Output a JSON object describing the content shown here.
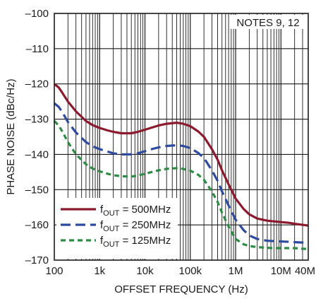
{
  "chart_data": {
    "type": "line",
    "xlabel": "OFFSET FREQUENCY (Hz)",
    "ylabel": "PHASE NOISE (dBc/Hz)",
    "x_scale": "log",
    "xlim": [
      100,
      40000000
    ],
    "ylim": [
      -170,
      -100
    ],
    "grid": true,
    "annotation": "NOTES 9, 12",
    "legend_position": "bottom-left",
    "x_ticks": [
      {
        "value": 100,
        "label": "100"
      },
      {
        "value": 1000,
        "label": "1k"
      },
      {
        "value": 10000,
        "label": "10k"
      },
      {
        "value": 100000,
        "label": "100k"
      },
      {
        "value": 1000000,
        "label": "1M"
      },
      {
        "value": 10000000,
        "label": "10M"
      },
      {
        "value": 40000000,
        "label": "40M"
      }
    ],
    "y_ticks": [
      {
        "value": -100,
        "label": "–100"
      },
      {
        "value": -110,
        "label": "–110"
      },
      {
        "value": -120,
        "label": "–120"
      },
      {
        "value": -130,
        "label": "–130"
      },
      {
        "value": -140,
        "label": "–140"
      },
      {
        "value": -150,
        "label": "–150"
      },
      {
        "value": -160,
        "label": "–160"
      },
      {
        "value": -170,
        "label": "–170"
      }
    ],
    "series": [
      {
        "name": "fOUT = 500MHz",
        "legend": {
          "pre": "f",
          "sub": "OUT",
          "post": " = 500MHz"
        },
        "color": "#8b1a2e",
        "dash": "solid",
        "x": [
          100,
          125,
          150,
          200,
          300,
          500,
          700,
          1000,
          1500,
          2000,
          3000,
          5000,
          7000,
          10000,
          15000,
          20000,
          30000,
          50000,
          70000,
          100000,
          150000,
          200000,
          300000,
          400000,
          500000,
          700000,
          1000000,
          1500000,
          2000000,
          3000000,
          5000000,
          7000000,
          10000000,
          15000000,
          20000000,
          30000000,
          40000000
        ],
        "y": [
          -120,
          -121,
          -122.5,
          -125,
          -127.8,
          -130.5,
          -131.7,
          -132.5,
          -133.2,
          -133.6,
          -134,
          -134,
          -133.6,
          -133,
          -132.3,
          -131.8,
          -131.3,
          -131,
          -131.3,
          -132,
          -133.5,
          -135,
          -138.5,
          -141.5,
          -144.5,
          -148.5,
          -152.5,
          -155.5,
          -157,
          -158.2,
          -158.8,
          -159,
          -159.2,
          -159.4,
          -159.7,
          -160,
          -160.2
        ]
      },
      {
        "name": "fOUT = 250MHz",
        "legend": {
          "pre": "f",
          "sub": "OUT",
          "post": " = 250MHz"
        },
        "color": "#2e4a9e",
        "dash": "long-dash",
        "x": [
          100,
          125,
          150,
          200,
          300,
          500,
          700,
          1000,
          1500,
          2000,
          3000,
          5000,
          7000,
          10000,
          15000,
          20000,
          30000,
          50000,
          70000,
          100000,
          150000,
          200000,
          300000,
          400000,
          500000,
          700000,
          1000000,
          1500000,
          2000000,
          3000000,
          5000000,
          7000000,
          10000000,
          15000000,
          20000000,
          30000000,
          40000000
        ],
        "y": [
          -125.5,
          -126.5,
          -128,
          -130.8,
          -133.8,
          -136.5,
          -137.7,
          -138.5,
          -139.2,
          -139.7,
          -140,
          -140,
          -139.7,
          -139.1,
          -138.4,
          -138,
          -137.6,
          -137.4,
          -137.6,
          -138.2,
          -139.6,
          -141,
          -144.5,
          -147.5,
          -150.5,
          -154.5,
          -158.5,
          -161.5,
          -163,
          -164,
          -164.5,
          -164.6,
          -164.7,
          -164.8,
          -164.9,
          -165,
          -165
        ]
      },
      {
        "name": "fOUT = 125MHz",
        "legend": {
          "pre": "f",
          "sub": "OUT",
          "post": " = 125MHz"
        },
        "color": "#2e8b45",
        "dash": "short-dash",
        "x": [
          100,
          125,
          150,
          200,
          300,
          500,
          700,
          1000,
          1500,
          2000,
          3000,
          5000,
          7000,
          10000,
          15000,
          20000,
          30000,
          50000,
          70000,
          100000,
          150000,
          200000,
          300000,
          400000,
          500000,
          700000,
          1000000,
          1500000,
          2000000,
          3000000,
          5000000,
          7000000,
          10000000,
          15000000,
          20000000,
          30000000,
          40000000
        ],
        "y": [
          -130.5,
          -131.8,
          -133.5,
          -136.5,
          -140,
          -142.8,
          -144,
          -144.8,
          -145.5,
          -145.9,
          -146.2,
          -146.3,
          -146,
          -145.5,
          -144.9,
          -144.5,
          -144.1,
          -143.9,
          -144.1,
          -144.6,
          -145.8,
          -147.2,
          -150.5,
          -153.5,
          -156.5,
          -160.5,
          -164,
          -165.5,
          -166,
          -166.3,
          -166.5,
          -166.6,
          -166.6,
          -166.6,
          -166.6,
          -166.8,
          -166.8
        ]
      }
    ]
  }
}
